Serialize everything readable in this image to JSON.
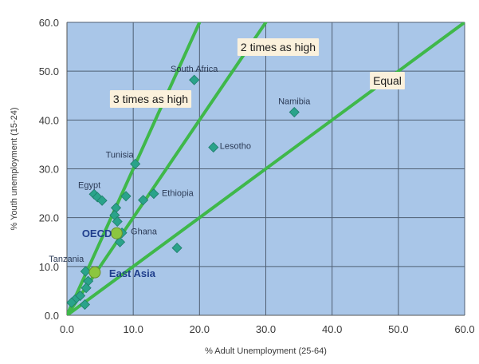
{
  "chart_data": {
    "type": "scatter",
    "title": "",
    "xlabel": "% Adult Unemployment (25-64)",
    "ylabel": "% Youth unemployment (15-24)",
    "xlim": [
      0,
      60
    ],
    "ylim": [
      0,
      60
    ],
    "x_ticks": [
      "0.0",
      "10.0",
      "20.0",
      "30.0",
      "40.0",
      "50.0",
      "60.0"
    ],
    "y_ticks": [
      "0.0",
      "10.0",
      "20.0",
      "30.0",
      "40.0",
      "50.0",
      "60.0"
    ],
    "grid": true,
    "colors": {
      "plot_background": "#a9c6e8",
      "grid": "#4f5f73",
      "reference_line": "#3fb84a",
      "country_marker": "#2aa38a",
      "aggregate_marker": "#8cc63f",
      "aggregate_label": "#1f3e8c",
      "callout_background": "#fbf1dc"
    },
    "reference_lines": [
      {
        "label": "Equal",
        "slope": 1
      },
      {
        "label": "2 times as high",
        "slope": 2
      },
      {
        "label": "3 times as high",
        "slope": 3
      }
    ],
    "points": [
      {
        "label": "South Africa",
        "x": 19.2,
        "y": 48.2
      },
      {
        "label": "Namibia",
        "x": 34.3,
        "y": 41.6
      },
      {
        "label": "Lesotho",
        "x": 22.1,
        "y": 34.4
      },
      {
        "label": "Tunisia",
        "x": 10.3,
        "y": 31.0
      },
      {
        "label": "Ethiopia",
        "x": 13.1,
        "y": 24.9
      },
      {
        "label": "Egypt",
        "x": 4.1,
        "y": 24.8
      },
      {
        "label": "Ghana",
        "x": 8.3,
        "y": 16.9
      },
      {
        "label": "Tanzania",
        "x": 2.8,
        "y": 9.0
      },
      {
        "label": "",
        "x": 4.6,
        "y": 24.2
      },
      {
        "label": "",
        "x": 5.3,
        "y": 23.5
      },
      {
        "label": "",
        "x": 8.9,
        "y": 24.4
      },
      {
        "label": "",
        "x": 11.5,
        "y": 23.6
      },
      {
        "label": "",
        "x": 7.4,
        "y": 22.0
      },
      {
        "label": "",
        "x": 7.2,
        "y": 20.5
      },
      {
        "label": "",
        "x": 7.6,
        "y": 19.2
      },
      {
        "label": "",
        "x": 8.0,
        "y": 15.0
      },
      {
        "label": "",
        "x": 16.6,
        "y": 13.8
      },
      {
        "label": "",
        "x": 3.2,
        "y": 7.0
      },
      {
        "label": "",
        "x": 2.9,
        "y": 5.6
      },
      {
        "label": "",
        "x": 2.0,
        "y": 4.0
      },
      {
        "label": "",
        "x": 1.2,
        "y": 3.2
      },
      {
        "label": "",
        "x": 0.7,
        "y": 2.6
      },
      {
        "label": "",
        "x": 2.7,
        "y": 2.2
      }
    ],
    "aggregates": [
      {
        "label": "OECD",
        "x": 7.5,
        "y": 16.8
      },
      {
        "label": "East Asia",
        "x": 4.2,
        "y": 8.8
      }
    ]
  }
}
